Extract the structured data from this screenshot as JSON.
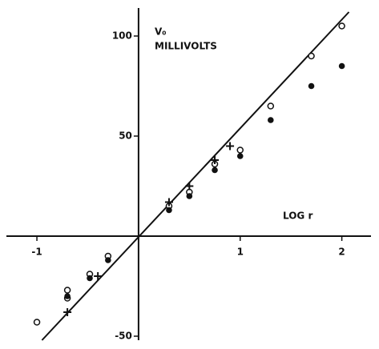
{
  "chart_data": {
    "type": "scatter",
    "y_label": [
      "V₀",
      "MILLIVOLTS"
    ],
    "x_label": "LOG r",
    "xlim": [
      -1.3,
      2.35
    ],
    "ylim": [
      -52,
      114
    ],
    "xticks": [
      -1,
      1,
      2
    ],
    "yticks": [
      -50,
      50,
      100
    ],
    "color": "#111111",
    "line": {
      "x": [
        -0.95,
        2.07
      ],
      "values": [
        -52,
        112
      ]
    },
    "series": [
      {
        "marker": "open-circle",
        "x": [
          -1,
          -0.7,
          -0.7,
          -0.48,
          -0.3,
          0.3,
          0.5,
          0.75,
          1,
          1.3,
          1.7,
          2
        ],
        "values": [
          -43,
          -27,
          -31,
          -19,
          -10,
          15,
          22,
          36,
          43,
          65,
          90,
          105
        ]
      },
      {
        "marker": "filled-circle",
        "x": [
          -0.7,
          -0.48,
          -0.3,
          0.3,
          0.5,
          0.75,
          1,
          1.3,
          1.7,
          2
        ],
        "values": [
          -30,
          -21,
          -12,
          13,
          20,
          33,
          40,
          58,
          75,
          85
        ]
      },
      {
        "marker": "plus",
        "x": [
          -0.7,
          -0.4,
          0.3,
          0.5,
          0.75,
          0.9
        ],
        "values": [
          -38,
          -20,
          17,
          25,
          38,
          45
        ]
      }
    ]
  }
}
